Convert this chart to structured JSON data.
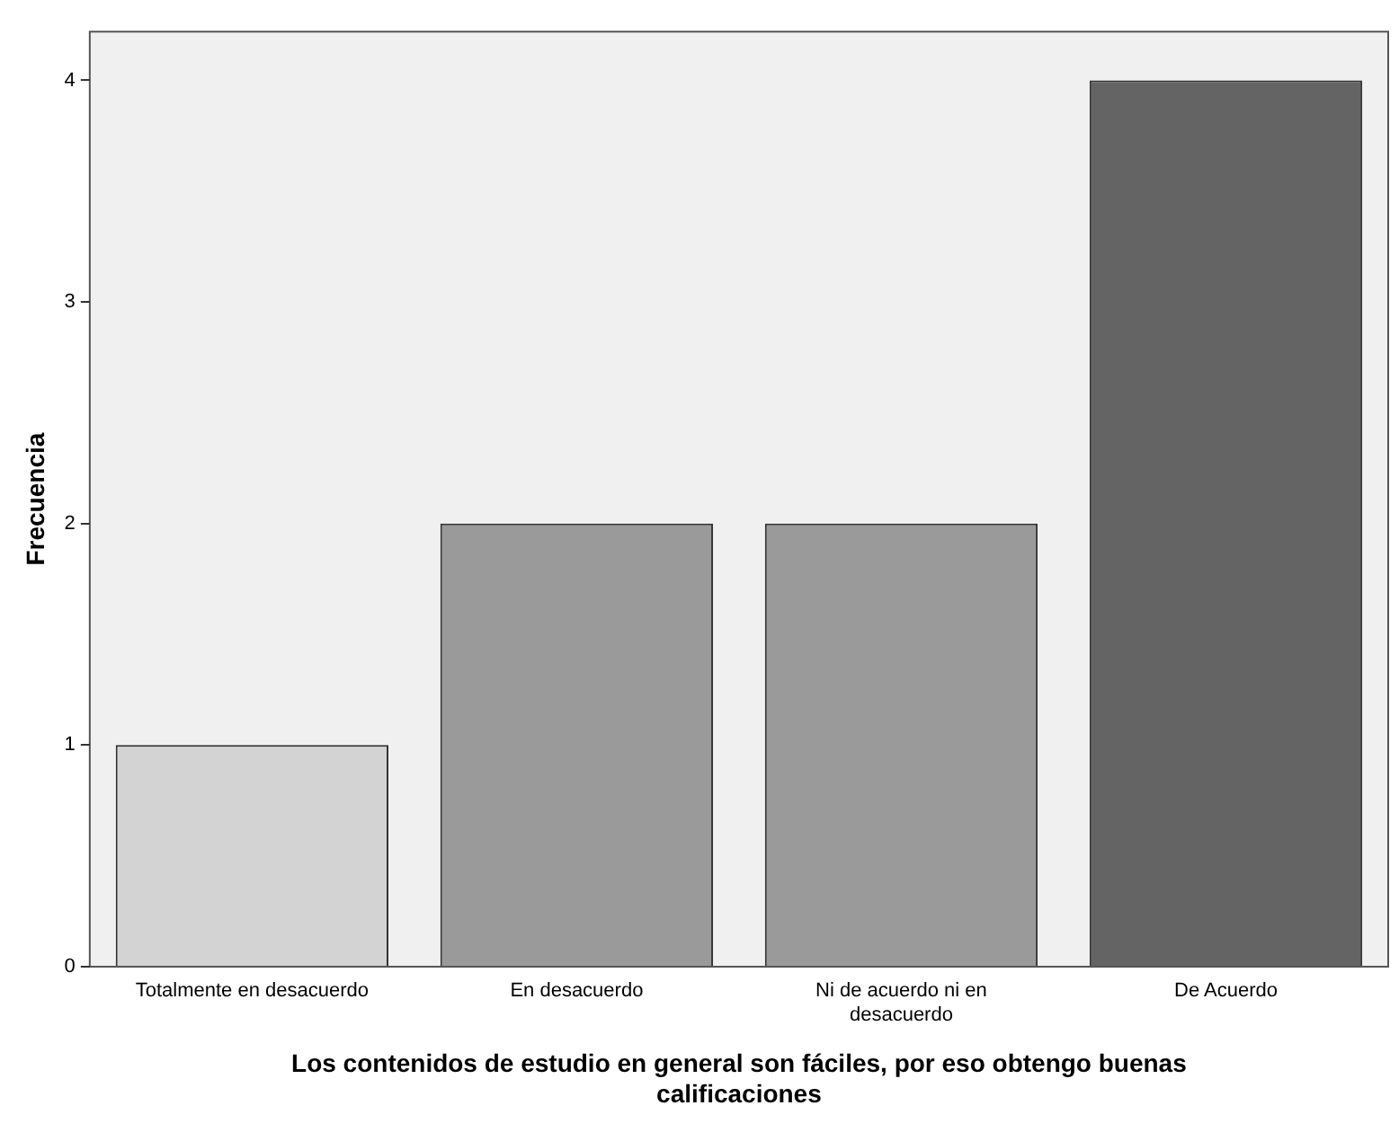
{
  "chart_data": {
    "type": "bar",
    "xlabel": "Los contenidos de estudio en general son fáciles, por eso obtengo buenas calificaciones",
    "ylabel": "Frecuencia",
    "categories": [
      "Totalmente en desacuerdo",
      "En desacuerdo",
      "Ni de acuerdo ni en desacuerdo",
      "De Acuerdo"
    ],
    "values": [
      1,
      2,
      2,
      4
    ],
    "colors": [
      "#d3d3d3",
      "#9a9a9a",
      "#9a9a9a",
      "#646464"
    ],
    "ylim": [
      0,
      4.22
    ],
    "yticks": [
      0,
      1,
      2,
      3,
      4
    ],
    "grid": false,
    "legend": false
  }
}
